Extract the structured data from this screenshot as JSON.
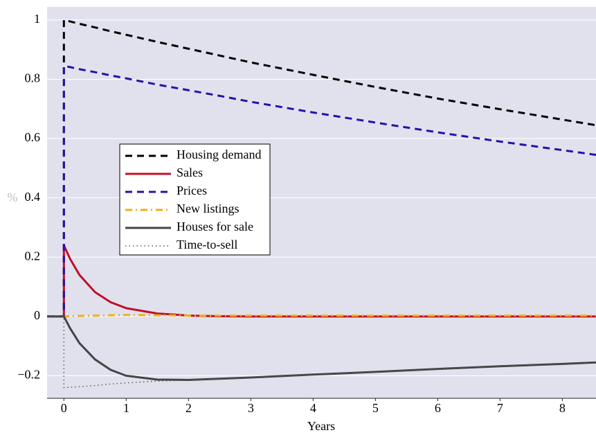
{
  "chart_data": {
    "type": "line",
    "y_label": "%",
    "x_label": "Years",
    "x": [
      -0.27,
      0,
      0,
      0.1,
      0.25,
      0.5,
      0.75,
      1,
      1.5,
      2,
      2.5,
      3,
      4,
      5,
      6,
      7,
      8,
      8.54
    ],
    "series": [
      {
        "name": "Housing demand",
        "color": "#000000",
        "style": "dashed",
        "values": [
          0,
          0,
          1,
          0.995,
          0.987,
          0.975,
          0.962,
          0.95,
          0.926,
          0.903,
          0.88,
          0.857,
          0.815,
          0.774,
          0.735,
          0.699,
          0.664,
          0.645
        ]
      },
      {
        "name": "Sales",
        "color": "#c0102a",
        "style": "solid",
        "values": [
          0,
          0,
          0.24,
          0.194,
          0.14,
          0.082,
          0.048,
          0.028,
          0.01,
          0.003,
          0.001,
          0,
          0,
          0,
          0,
          0,
          0,
          0
        ]
      },
      {
        "name": "Prices",
        "color": "#2a0fa8",
        "style": "dashed",
        "values": [
          0,
          0,
          0.845,
          0.841,
          0.834,
          0.824,
          0.813,
          0.803,
          0.782,
          0.763,
          0.744,
          0.724,
          0.688,
          0.654,
          0.621,
          0.59,
          0.561,
          0.545
        ]
      },
      {
        "name": "New listings",
        "color": "#f0b010",
        "style": "dashdot",
        "values": [
          0,
          0,
          0,
          0.001,
          0.002,
          0.003,
          0.004,
          0.005,
          0.004,
          0.003,
          0.003,
          0.003,
          0.003,
          0.003,
          0.003,
          0.003,
          0.003,
          0.003
        ]
      },
      {
        "name": "Houses for sale",
        "color": "#444444",
        "style": "solid",
        "values": [
          0,
          0,
          0,
          -0.04,
          -0.09,
          -0.145,
          -0.18,
          -0.2,
          -0.213,
          -0.214,
          -0.21,
          -0.206,
          -0.196,
          -0.187,
          -0.177,
          -0.168,
          -0.16,
          -0.155
        ]
      },
      {
        "name": "Time-to-sell",
        "color": "#555555",
        "style": "dotted",
        "values": [
          0,
          0,
          -0.24,
          -0.239,
          -0.237,
          -0.233,
          -0.228,
          -0.224,
          -0.218,
          -0.215,
          -0.21,
          -0.206,
          -0.196,
          -0.187,
          -0.177,
          -0.168,
          -0.16,
          -0.155
        ]
      }
    ],
    "xlim": [
      -0.27,
      8.54
    ],
    "xticks": [
      0,
      1,
      2,
      3,
      4,
      5,
      6,
      7,
      8
    ],
    "ylim": [
      -0.276,
      1.044
    ],
    "yticks": [
      {
        "value": -0.2,
        "label": "−0.2"
      },
      0,
      0.2,
      0.4,
      0.6,
      0.8,
      1
    ],
    "grid": true,
    "legend": "center-left"
  }
}
